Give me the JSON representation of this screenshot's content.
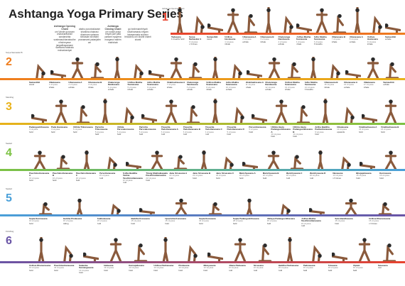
{
  "title": "Ashtanga Yoga Primary Series",
  "chants": [
    {
      "head": "Ashtanga Opening Chant",
      "text": "om Vande gurunam charanaravinde sandarshita svatmasukhavabodhe nihshreyase jangalikayamane samsara halahala mohashantyai"
    },
    {
      "head": "",
      "text": "abahu purushakaram shankha chakrasi dharinam sahasra shirasam shvetam pranamami patanjalim om"
    },
    {
      "head": "Ashtanga Closing Chant",
      "text": "om svasti praja bhyah pari pala yantam nyayena margena mahim mahishah"
    },
    {
      "head": "",
      "text": "go brahmanebhyah shubhamastu nityam lokasamasta sukhino bhavantu om shanti shanti shanti"
    }
  ],
  "colors": [
    "#e8432e",
    "#ef7d1e",
    "#e9b21a",
    "#7cc243",
    "#4aa0d9",
    "#6a55a6"
  ],
  "rows": [
    {
      "num": "1",
      "head": "Ashtanga Opening Chant",
      "poses": [
        {
          "name": "Tadasana",
          "sub": "",
          "note": "1 breaths hold"
        },
        {
          "name": "Surya Namaskar A",
          "sub": "9 vinyasa",
          "note": "x 3 times"
        },
        {
          "name": "Samasthiti",
          "sub": "",
          "note": "stand"
        },
        {
          "name": "Urdhva Hastasana",
          "sub": "1 vinyasa",
          "note": "inhale"
        },
        {
          "name": "Uttanasana A",
          "sub": "2 vinyasa",
          "note": "exhale"
        },
        {
          "name": "Uttanasana B",
          "sub": "3 vinyasa",
          "note": "inhale"
        },
        {
          "name": "Chaturanga Dandasana",
          "sub": "4 vinyasa",
          "note": "exhale"
        },
        {
          "name": "Urdhva Mukha Svanasana",
          "sub": "5 vinyasa",
          "note": "inhale"
        },
        {
          "name": "Adho Mukha Svanasana",
          "sub": "6 vinyasa",
          "note": "5 breaths"
        },
        {
          "name": "Uttanasana B",
          "sub": "7 vinyasa",
          "note": "inhale"
        },
        {
          "name": "Uttanasana A",
          "sub": "8 vinyasa",
          "note": "exhale"
        },
        {
          "name": "Urdhva Hastasana",
          "sub": "9 vinyasa",
          "note": "inhale"
        },
        {
          "name": "Samasthiti",
          "sub": "",
          "note": "exhale"
        }
      ]
    },
    {
      "num": "2",
      "head": "Surya Namaskar B",
      "poses": [
        {
          "name": "Samasthiti",
          "sub": "",
          "note": "stand"
        },
        {
          "name": "Utkatasana",
          "sub": "1 vinyasa",
          "note": "inhale"
        },
        {
          "name": "Uttanasana A",
          "sub": "2 vinyasa",
          "note": "exhale"
        },
        {
          "name": "Uttanasana B",
          "sub": "3 vinyasa",
          "note": "inhale"
        },
        {
          "name": "Chaturanga Dandasana",
          "sub": "4 vinyasa",
          "note": "exhale"
        },
        {
          "name": "Urdhva Mukha Svanasana",
          "sub": "5 vinyasa",
          "note": "inhale"
        },
        {
          "name": "Adho Mukha Svanasana",
          "sub": "6 vinyasa",
          "note": "exhale"
        },
        {
          "name": "Virabhadrasana A",
          "sub": "7 vinyasa",
          "note": "inhale"
        },
        {
          "name": "Chaturanga Dandasana",
          "sub": "8 vinyasa",
          "note": "exhale"
        },
        {
          "name": "Urdhva Mukha Svanasana",
          "sub": "9 vinyasa",
          "note": "inhale"
        },
        {
          "name": "Adho Mukha Svanasana",
          "sub": "10 vinyasa",
          "note": "exhale"
        },
        {
          "name": "Virabhadrasana A",
          "sub": "11 vinyasa",
          "note": "inhale"
        },
        {
          "name": "Chaturanga Dandasana",
          "sub": "12 vinyasa",
          "note": "exhale"
        },
        {
          "name": "Urdhva Mukha Svanasana",
          "sub": "13 vinyasa",
          "note": "inhale"
        },
        {
          "name": "Adho Mukha Svanasana",
          "sub": "14 vinyasa",
          "note": "5 breaths"
        },
        {
          "name": "Uttanasana B",
          "sub": "15 vinyasa",
          "note": "inhale"
        },
        {
          "name": "Uttanasana A",
          "sub": "16 vinyasa",
          "note": "exhale"
        },
        {
          "name": "Utkatasana",
          "sub": "17 vinyasa",
          "note": "inhale"
        },
        {
          "name": "Samasthiti",
          "sub": "",
          "note": "exhale"
        }
      ]
    },
    {
      "num": "3",
      "head": "Standing",
      "poses": [
        {
          "name": "Padangushthasana",
          "sub": "3 vinyasa",
          "note": "hold"
        },
        {
          "name": "Pada Hastasana",
          "sub": "3 vinyasa",
          "note": "hold"
        },
        {
          "name": "Utthita Trikonasana",
          "sub": "5 vinyasa",
          "note": "hold"
        },
        {
          "name": "Parivrtta Trikonasana",
          "sub": "5 vinyasa",
          "note": "hold"
        },
        {
          "name": "Utthita Parsvakonasana",
          "sub": "5 vinyasa",
          "note": "hold"
        },
        {
          "name": "Parivrtta Parsvakonasana",
          "sub": "5 vinyasa",
          "note": "hold"
        },
        {
          "name": "Prasarita Padottanasana A",
          "sub": "5 vinyasa",
          "note": "hold"
        },
        {
          "name": "Prasarita Padottanasana B",
          "sub": "5 vinyasa",
          "note": "hold"
        },
        {
          "name": "Prasarita Padottanasana C",
          "sub": "5 vinyasa",
          "note": "hold"
        },
        {
          "name": "Prasarita Padottanasana D",
          "sub": "5 vinyasa",
          "note": "hold"
        },
        {
          "name": "Parsvottanasana",
          "sub": "5 vinyasa",
          "note": "hold"
        },
        {
          "name": "Utthita Hasta Padangushthasana A",
          "sub": "14 vinyasa",
          "note": "hold"
        },
        {
          "name": "Utthita Hasta Padangushthasana B",
          "sub": "14 vinyasa",
          "note": "hold"
        },
        {
          "name": "Ardha Baddha Padmottanasana",
          "sub": "9 vinyasa",
          "note": "hold"
        },
        {
          "name": "Utkatasana",
          "sub": "13 vinyasa",
          "note": "upwards"
        },
        {
          "name": "Virabhadrasana A",
          "sub": "16 vinyasa",
          "note": "hold"
        },
        {
          "name": "Virabhadrasana B",
          "sub": "16 vinyasa",
          "note": "hold"
        }
      ]
    },
    {
      "num": "4",
      "head": "Seated",
      "poses": [
        {
          "name": "Paschimottanasana A",
          "sub": "16 vinyasa",
          "note": "hold"
        },
        {
          "name": "Paschimottanasana B",
          "sub": "16 vinyasa",
          "note": "hold"
        },
        {
          "name": "Paschimottanasana C",
          "sub": "16 vinyasa",
          "note": "hold"
        },
        {
          "name": "Purvottanasana",
          "sub": "15 vinyasa",
          "note": "hold"
        },
        {
          "name": "Ardha Baddha Padma Paschimottanasana",
          "sub": "22 vinyasa",
          "note": "hold"
        },
        {
          "name": "Triang Mukhaikapada Paschimottanasana",
          "sub": "22 vinyasa",
          "note": "hold"
        },
        {
          "name": "Janu Sirsasana A",
          "sub": "22 vinyasa",
          "note": "hold"
        },
        {
          "name": "Janu Sirsasana B",
          "sub": "22 vinyasa",
          "note": "hold"
        },
        {
          "name": "Janu Sirsasana C",
          "sub": "22 vinyasa",
          "note": "hold"
        },
        {
          "name": "Marichyasana A",
          "sub": "22 vinyasa",
          "note": "hold"
        },
        {
          "name": "Marichyasana B",
          "sub": "22 vinyasa",
          "note": "hold"
        },
        {
          "name": "Marichyasana C",
          "sub": "18 vinyasa",
          "note": "hold"
        },
        {
          "name": "Marichyasana D",
          "sub": "18 vinyasa",
          "note": "hold"
        },
        {
          "name": "Navasana",
          "sub": "13 vinyasa",
          "note": "x 5 times"
        },
        {
          "name": "Bhujapidasana",
          "sub": "15 vinyasa",
          "note": "hold"
        },
        {
          "name": "Kurmasana",
          "sub": "16 vinyasa",
          "note": "hold"
        }
      ]
    },
    {
      "num": "5",
      "head": "Seated",
      "poses": [
        {
          "name": "Supta Kurmasana",
          "sub": "16 vinyasa",
          "note": "hold"
        },
        {
          "name": "Garbha Pindasana",
          "sub": "15 vinyasa",
          "note": "rolling"
        },
        {
          "name": "Kukkutasana",
          "sub": "15 vinyasa",
          "note": "hold"
        },
        {
          "name": "Baddha Konasana",
          "sub": "15 vinyasa",
          "note": "hold"
        },
        {
          "name": "Upavishta Konasana",
          "sub": "15 vinyasa",
          "note": "hold"
        },
        {
          "name": "Supta Konasana",
          "sub": "16 vinyasa",
          "note": "hold"
        },
        {
          "name": "Supta Padangushthasana",
          "sub": "28 vinyasa",
          "note": "hold"
        },
        {
          "name": "Ubhaya Padangushthasana",
          "sub": "15 vinyasa",
          "note": "hold"
        },
        {
          "name": "Urdhva Mukha Paschimottanasana",
          "sub": "16 vinyasa",
          "note": "hold"
        },
        {
          "name": "Setu Bandhasana",
          "sub": "15 vinyasa",
          "note": "hold"
        },
        {
          "name": "Urdhva Dhanurasana",
          "sub": "15 vinyasa",
          "note": "x 3 times"
        }
      ]
    },
    {
      "num": "6",
      "head": "Finishing",
      "poses": [
        {
          "name": "Urdhva Dhanurasana",
          "sub": "15 vinyasa",
          "note": "hold"
        },
        {
          "name": "Paschimottanasana",
          "sub": "16 vinyasa",
          "note": "hold"
        },
        {
          "name": "Salamba Sarvangasana",
          "sub": "13 vinyasa",
          "note": "hold"
        },
        {
          "name": "Halasana",
          "sub": "13 vinyasa",
          "note": "hold"
        },
        {
          "name": "Karnapidasana",
          "sub": "13 vinyasa",
          "note": "hold"
        },
        {
          "name": "Urdhva Padmasana",
          "sub": "13 vinyasa",
          "note": "hold"
        },
        {
          "name": "Pindasana",
          "sub": "13 vinyasa",
          "note": "hold"
        },
        {
          "name": "Matsyasana",
          "sub": "13 vinyasa",
          "note": "hold"
        },
        {
          "name": "Uttana Padasana",
          "sub": "13 vinyasa",
          "note": "hold"
        },
        {
          "name": "Sirsasana",
          "sub": "13 vinyasa",
          "note": "hold"
        },
        {
          "name": "Baddha Padmasana",
          "sub": "15 vinyasa",
          "note": "hold"
        },
        {
          "name": "Padmasana",
          "sub": "15 vinyasa",
          "note": "hold"
        },
        {
          "name": "Tolasana",
          "sub": "15 vinyasa",
          "note": "hold"
        },
        {
          "name": "Utpluti",
          "sub": "15 vinyasa",
          "note": "hold"
        },
        {
          "name": "Savasana",
          "sub": "",
          "note": "rest"
        }
      ]
    }
  ]
}
